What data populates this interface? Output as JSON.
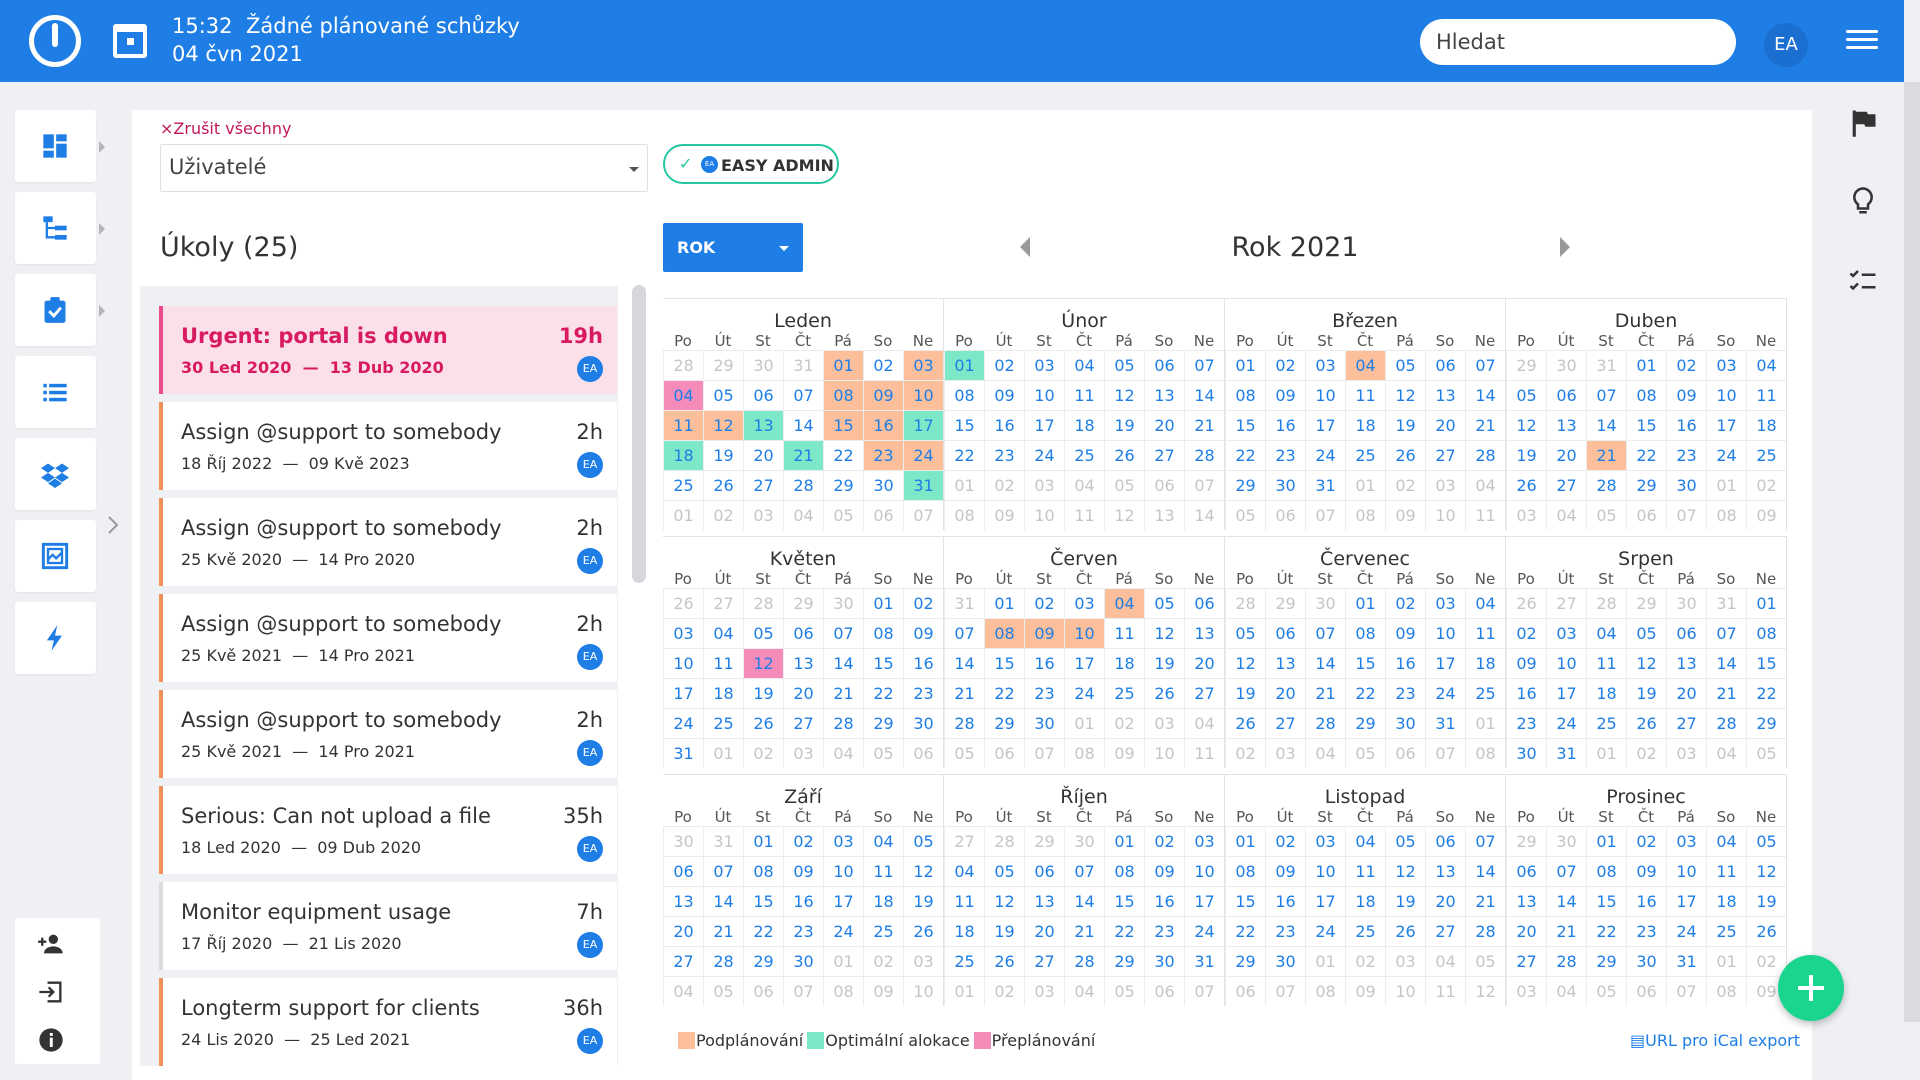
{
  "topbar": {
    "time": "15:32",
    "meeting": "Žádné plánované schůzky",
    "date": "04 čvn 2021",
    "search_placeholder": "Hledat",
    "avatar": "EA",
    "icons": [
      "logo-icon",
      "calendar-icon",
      "menu-icon"
    ]
  },
  "sidebar": {
    "items": [
      "dashboard-icon",
      "hierarchy-icon",
      "clipboard-check-icon",
      "list-icon",
      "dropbox-icon",
      "gallery-icon",
      "lightning-icon"
    ],
    "bottom": [
      "add-user-icon",
      "logout-icon",
      "info-icon"
    ]
  },
  "right_sidebar": [
    "flag-icon",
    "lightbulb-icon",
    "checklist-icon"
  ],
  "filter": {
    "cancel_all": "×Zrušit všechny",
    "select_value": "Uživatelé",
    "chip_avatar": "EA",
    "chip_label": "EASY ADMIN"
  },
  "tasks": {
    "title": "Úkoly (25)",
    "items": [
      {
        "name": "Urgent: portal is down",
        "hours": "19h",
        "start": "30 Led 2020",
        "end": "13 Dub 2020",
        "avatar": "EA",
        "priority": "urgent"
      },
      {
        "name": "Assign @support to somebody",
        "hours": "2h",
        "start": "18 Říj 2022",
        "end": "09 Kvě 2023",
        "avatar": "EA",
        "priority": "high"
      },
      {
        "name": "Assign @support to somebody",
        "hours": "2h",
        "start": "25 Kvě 2020",
        "end": "14 Pro 2020",
        "avatar": "EA",
        "priority": "high"
      },
      {
        "name": "Assign @support to somebody",
        "hours": "2h",
        "start": "25 Kvě 2021",
        "end": "14 Pro 2021",
        "avatar": "EA",
        "priority": "high"
      },
      {
        "name": "Assign @support to somebody",
        "hours": "2h",
        "start": "25 Kvě 2021",
        "end": "14 Pro 2021",
        "avatar": "EA",
        "priority": "high"
      },
      {
        "name": "Serious: Can not upload a file",
        "hours": "35h",
        "start": "18 Led 2020",
        "end": "09 Dub 2020",
        "avatar": "EA",
        "priority": "high"
      },
      {
        "name": "Monitor equipment usage",
        "hours": "7h",
        "start": "17 Říj 2020",
        "end": "21 Lis 2020",
        "avatar": "EA",
        "priority": "normal"
      },
      {
        "name": "Longterm support for clients",
        "hours": "36h",
        "start": "24 Lis 2020",
        "end": "25 Led 2021",
        "avatar": "EA",
        "priority": "high"
      }
    ],
    "dash": "—"
  },
  "calendar": {
    "view": "ROK",
    "title": "Rok 2021",
    "weekdays": [
      "Po",
      "Út",
      "St",
      "Čt",
      "Pá",
      "So",
      "Ne"
    ],
    "months": [
      {
        "name": "Leden",
        "start_offset": 4,
        "days": 31,
        "prev_days": 31,
        "marks": {
          "1": "u",
          "3": "u",
          "4": "x",
          "8": "u",
          "9": "u",
          "10": "u",
          "11": "u",
          "12": "u",
          "13": "o",
          "15": "u",
          "16": "u",
          "17": "o",
          "18": "o",
          "21": "o",
          "23": "u",
          "24": "u",
          "31": "o"
        }
      },
      {
        "name": "Únor",
        "start_offset": 0,
        "days": 28,
        "prev_days": 31,
        "marks": {
          "1": "o"
        }
      },
      {
        "name": "Březen",
        "start_offset": 0,
        "days": 31,
        "prev_days": 28,
        "marks": {
          "4": "u"
        }
      },
      {
        "name": "Duben",
        "start_offset": 3,
        "days": 30,
        "prev_days": 31,
        "marks": {
          "21": "u"
        }
      },
      {
        "name": "Květen",
        "start_offset": 5,
        "days": 31,
        "prev_days": 30,
        "marks": {
          "12": "x"
        }
      },
      {
        "name": "Červen",
        "start_offset": 1,
        "days": 30,
        "prev_days": 31,
        "marks": {
          "4": "u",
          "8": "u",
          "9": "u",
          "10": "u"
        }
      },
      {
        "name": "Červenec",
        "start_offset": 3,
        "days": 31,
        "prev_days": 30,
        "marks": {}
      },
      {
        "name": "Srpen",
        "start_offset": 6,
        "days": 31,
        "prev_days": 31,
        "marks": {}
      },
      {
        "name": "Září",
        "start_offset": 2,
        "days": 30,
        "prev_days": 31,
        "marks": {}
      },
      {
        "name": "Říjen",
        "start_offset": 4,
        "days": 31,
        "prev_days": 30,
        "marks": {}
      },
      {
        "name": "Listopad",
        "start_offset": 0,
        "days": 30,
        "prev_days": 31,
        "marks": {}
      },
      {
        "name": "Prosinec",
        "start_offset": 2,
        "days": 31,
        "prev_days": 30,
        "marks": {}
      }
    ]
  },
  "legend": {
    "items": [
      {
        "label": "Podplánování",
        "color": "#fbbf9b"
      },
      {
        "label": "Optimální alokace",
        "color": "#7de8c7"
      },
      {
        "label": "Přeplánování",
        "color": "#f48bb8"
      }
    ],
    "ical": "URL pro iCal export"
  },
  "colors": {
    "primary": "#1e7ee6",
    "accent": "#19d58e",
    "urgent": "#d81b60"
  }
}
